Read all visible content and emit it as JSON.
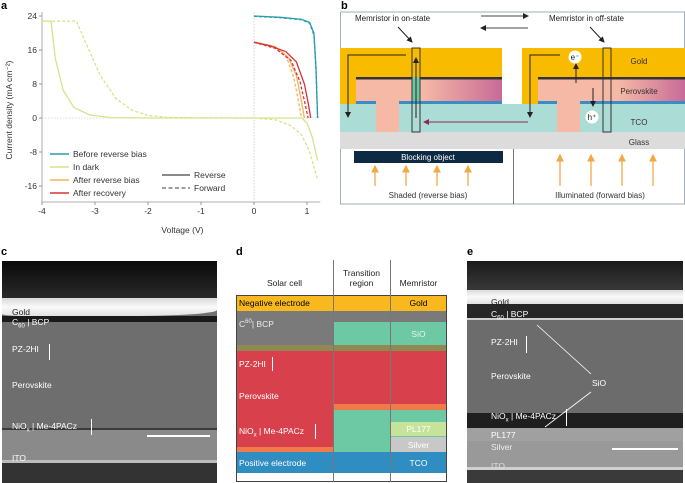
{
  "panels": {
    "a": "a",
    "b": "b",
    "c": "c",
    "d": "d",
    "e": "e"
  },
  "chart_data": {
    "type": "line",
    "xlabel": "Voltage (V)",
    "ylabel": "Current density (mA cm⁻²)",
    "xlim": [
      -4,
      1.25
    ],
    "ylim": [
      -20,
      24
    ],
    "xticks": [
      "-4",
      "-3",
      "-2",
      "-1",
      "0",
      "1"
    ],
    "yticks": [
      "24",
      "16",
      "8",
      "0",
      "-8",
      "-16"
    ],
    "xtick_values": [
      -4,
      -3,
      -2,
      -1,
      0,
      1
    ],
    "ytick_values": [
      24,
      16,
      8,
      0,
      -8,
      -16
    ],
    "legend_position": "bottom-left",
    "style_legend": {
      "reverse": "Reverse",
      "forward": "Forward"
    },
    "series": [
      {
        "name": "Before reverse bias",
        "color": "#2a9bb0",
        "reverse": [
          [
            0,
            24
          ],
          [
            0.5,
            23.7
          ],
          [
            0.9,
            23.2
          ],
          [
            1.05,
            22.5
          ],
          [
            1.13,
            20
          ],
          [
            1.17,
            12
          ],
          [
            1.2,
            0
          ]
        ],
        "forward": [
          [
            0,
            23.9
          ],
          [
            0.5,
            23.6
          ],
          [
            0.9,
            23.1
          ],
          [
            1.05,
            22.3
          ],
          [
            1.13,
            19.5
          ],
          [
            1.17,
            11
          ],
          [
            1.2,
            0
          ]
        ]
      },
      {
        "name": "In dark",
        "color": "#d6e38a",
        "reverse": [
          [
            -4,
            22.8
          ],
          [
            -3.83,
            22.8
          ],
          [
            -3.75,
            14
          ],
          [
            -3.6,
            6.5
          ],
          [
            -3.4,
            2.5
          ],
          [
            -3.1,
            0.7
          ],
          [
            -2.7,
            0.1
          ],
          [
            -2,
            0
          ],
          [
            0.9,
            0
          ],
          [
            1.0,
            -1.2
          ],
          [
            1.1,
            -4.5
          ],
          [
            1.2,
            -10
          ]
        ],
        "forward": [
          [
            -4,
            22.8
          ],
          [
            -3.35,
            22.8
          ],
          [
            -3.15,
            17
          ],
          [
            -2.9,
            10
          ],
          [
            -2.6,
            4.5
          ],
          [
            -2.3,
            1.8
          ],
          [
            -2,
            0.6
          ],
          [
            -1.6,
            0.1
          ],
          [
            0,
            0
          ],
          [
            0.4,
            -0.4
          ],
          [
            0.7,
            -1.8
          ],
          [
            0.9,
            -4
          ],
          [
            1.05,
            -8
          ],
          [
            1.2,
            -14.5
          ]
        ]
      },
      {
        "name": "After reverse bias",
        "color": "#f2b45c",
        "reverse": [
          [
            0,
            17.9
          ],
          [
            0.4,
            16.8
          ],
          [
            0.65,
            14.2
          ],
          [
            0.8,
            10
          ],
          [
            0.88,
            5
          ],
          [
            0.93,
            1.5
          ],
          [
            0.95,
            0
          ]
        ],
        "forward": [
          [
            0,
            17.9
          ],
          [
            0.4,
            16.6
          ],
          [
            0.6,
            14.8
          ],
          [
            0.75,
            9.5
          ],
          [
            0.84,
            4
          ],
          [
            0.88,
            1
          ],
          [
            0.9,
            0
          ]
        ]
      },
      {
        "name": "After recovery",
        "color": "#d6333b",
        "reverse": [
          [
            0,
            17.8
          ],
          [
            0.3,
            17
          ],
          [
            0.6,
            15.6
          ],
          [
            0.8,
            13.2
          ],
          [
            0.95,
            8
          ],
          [
            1.03,
            3
          ],
          [
            1.07,
            0
          ]
        ],
        "forward": [
          [
            0,
            17.8
          ],
          [
            0.4,
            16.4
          ],
          [
            0.7,
            13.5
          ],
          [
            0.87,
            8.5
          ],
          [
            0.97,
            3
          ],
          [
            1.02,
            0
          ]
        ]
      }
    ]
  },
  "panel_b": {
    "on_state": "Memristor in on-state",
    "off_state": "Memristor in off-state",
    "gold": "Gold",
    "perovskite": "Perovskite",
    "tco": "TCO",
    "glass": "Glass",
    "electron": "e⁻",
    "hole": "h⁺",
    "blocking": "Blocking object",
    "shaded": "Shaded (reverse bias)",
    "illuminated": "Illuminated (forward bias)",
    "colors": {
      "gold": "#f9bb00",
      "perovskite": "#f5b9a6",
      "perovskite_end": "#c86b97",
      "tco": "#acdcd6",
      "glass": "#dcdcdc",
      "blue": "#3a8cc4",
      "blocking": "#0c2a44",
      "light": "#f3a847"
    }
  },
  "panel_c": {
    "labels": {
      "gold": "Gold",
      "c60": "C",
      "c60_sub": "60",
      "c60_rest": " | BCP",
      "pz": "PZ-2HI",
      "perovskite": "Perovskite",
      "nio": "NiO",
      "nio_sub": "x",
      "nio_rest": " | Me-4PACz",
      "ito": "ITO"
    }
  },
  "panel_d": {
    "headers": {
      "solar": "Solar cell",
      "transition": "Transition region",
      "memristor": "Memristor"
    },
    "negative": "Negative electrode",
    "gold": "Gold",
    "c60": "C",
    "c60_sub": "60",
    "c60_rest": " | BCP",
    "sio": "SiO",
    "pz": "PZ-2HI",
    "perovskite": "Perovskite",
    "nio": "NiO",
    "nio_sub": "x",
    "nio_rest": " | Me-4PACz",
    "pl177": "PL177",
    "silver": "Silver",
    "positive": "Positive electrode",
    "tco": "TCO",
    "colors": {
      "gold": "#f9b91e",
      "gray": "#7a7a7a",
      "olive": "#8e8a52",
      "green": "#6dc8a4",
      "red": "#d8404c",
      "orange": "#f07a4a",
      "pl177": "#c6e39a",
      "silver": "#c8c8c8",
      "blue": "#2f8dc2"
    }
  },
  "panel_e": {
    "labels": {
      "gold": "Gold",
      "c60": "C",
      "c60_sub": "60",
      "c60_rest": " | BCP",
      "pz": "PZ-2HI",
      "perovskite": "Perovskite",
      "sio": "SiO",
      "nio": "NiO",
      "nio_sub": "x",
      "nio_rest": " | Me-4PACz",
      "pl177": "PL177",
      "silver": "Silver",
      "ito": "ITO"
    }
  }
}
